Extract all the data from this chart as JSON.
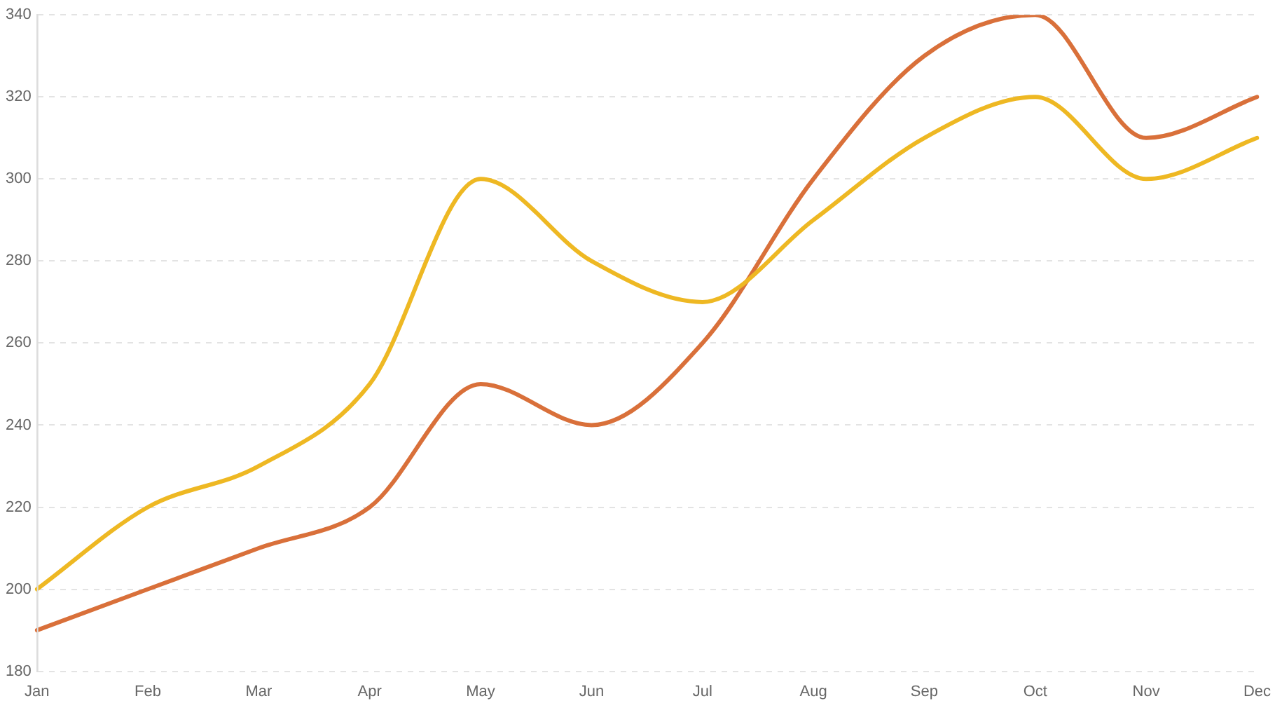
{
  "chart_data": {
    "type": "line",
    "categories": [
      "Jan",
      "Feb",
      "Mar",
      "Apr",
      "May",
      "Jun",
      "Jul",
      "Aug",
      "Sep",
      "Oct",
      "Nov",
      "Dec"
    ],
    "series": [
      {
        "color": "#eeb823",
        "values": [
          200,
          220,
          230,
          250,
          300,
          280,
          270,
          290,
          310,
          320,
          300,
          310
        ]
      },
      {
        "color": "#d9703a",
        "values": [
          190,
          200,
          210,
          220,
          250,
          240,
          260,
          300,
          330,
          340,
          310,
          320
        ]
      }
    ],
    "ylim": [
      180,
      340
    ],
    "yticks": [
      180,
      200,
      220,
      240,
      260,
      280,
      300,
      320,
      340
    ],
    "grid": "y"
  }
}
